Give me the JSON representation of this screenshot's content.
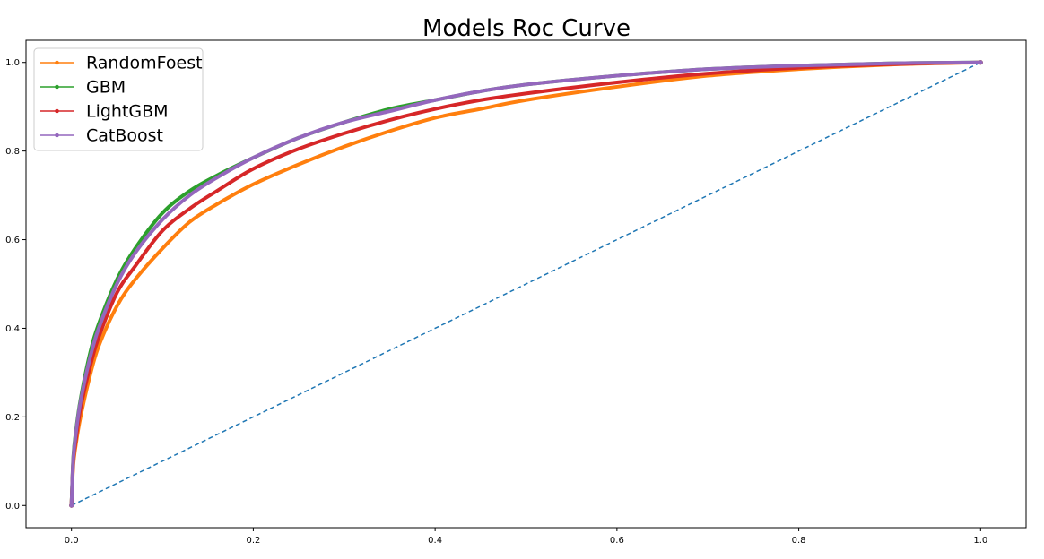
{
  "chart_data": {
    "type": "line",
    "title": "Models Roc Curve",
    "xlabel": "",
    "ylabel": "",
    "xlim": [
      -0.05,
      1.05
    ],
    "ylim": [
      -0.05,
      1.05
    ],
    "xticks": [
      0.0,
      0.2,
      0.4,
      0.6,
      0.8,
      1.0
    ],
    "yticks": [
      0.0,
      0.2,
      0.4,
      0.6,
      0.8,
      1.0
    ],
    "xtick_labels": [
      "0.0",
      "0.2",
      "0.4",
      "0.6",
      "0.8",
      "1.0"
    ],
    "ytick_labels": [
      "0.0",
      "0.2",
      "0.4",
      "0.6",
      "0.8",
      "1.0"
    ],
    "grid": false,
    "legend_position": "top-left",
    "baseline": {
      "name": "baseline",
      "color": "#1f77b4",
      "style": "dashed",
      "x": [
        0,
        1
      ],
      "y": [
        0,
        1
      ]
    },
    "series": [
      {
        "name": "RandomFoest",
        "color": "#ff7f0e",
        "x": [
          0,
          0.002,
          0.005,
          0.01,
          0.02,
          0.03,
          0.05,
          0.07,
          0.1,
          0.13,
          0.16,
          0.2,
          0.25,
          0.3,
          0.35,
          0.4,
          0.45,
          0.5,
          0.6,
          0.7,
          0.8,
          0.9,
          1.0
        ],
        "y": [
          0,
          0.09,
          0.14,
          0.2,
          0.29,
          0.36,
          0.45,
          0.51,
          0.58,
          0.64,
          0.68,
          0.725,
          0.77,
          0.81,
          0.845,
          0.875,
          0.895,
          0.915,
          0.945,
          0.97,
          0.985,
          0.995,
          1.0
        ]
      },
      {
        "name": "GBM",
        "color": "#2ca02c",
        "x": [
          0,
          0.002,
          0.005,
          0.01,
          0.02,
          0.03,
          0.05,
          0.07,
          0.1,
          0.13,
          0.16,
          0.2,
          0.25,
          0.3,
          0.35,
          0.4,
          0.45,
          0.5,
          0.6,
          0.7,
          0.8,
          0.9,
          1.0
        ],
        "y": [
          0,
          0.11,
          0.17,
          0.24,
          0.34,
          0.41,
          0.51,
          0.58,
          0.66,
          0.71,
          0.745,
          0.785,
          0.83,
          0.865,
          0.895,
          0.915,
          0.935,
          0.95,
          0.97,
          0.985,
          0.993,
          0.998,
          1.0
        ]
      },
      {
        "name": "LightGBM",
        "color": "#d62728",
        "x": [
          0,
          0.002,
          0.005,
          0.01,
          0.02,
          0.03,
          0.05,
          0.07,
          0.1,
          0.13,
          0.16,
          0.2,
          0.25,
          0.3,
          0.35,
          0.4,
          0.45,
          0.5,
          0.6,
          0.7,
          0.8,
          0.9,
          1.0
        ],
        "y": [
          0,
          0.1,
          0.15,
          0.22,
          0.31,
          0.38,
          0.48,
          0.54,
          0.62,
          0.67,
          0.71,
          0.76,
          0.805,
          0.84,
          0.87,
          0.895,
          0.915,
          0.93,
          0.955,
          0.975,
          0.988,
          0.996,
          1.0
        ]
      },
      {
        "name": "CatBoost",
        "color": "#9467bd",
        "x": [
          0,
          0.002,
          0.005,
          0.01,
          0.02,
          0.03,
          0.05,
          0.07,
          0.1,
          0.13,
          0.16,
          0.2,
          0.25,
          0.3,
          0.35,
          0.4,
          0.45,
          0.5,
          0.6,
          0.7,
          0.8,
          0.9,
          1.0
        ],
        "y": [
          0,
          0.105,
          0.165,
          0.235,
          0.33,
          0.4,
          0.5,
          0.57,
          0.645,
          0.7,
          0.74,
          0.785,
          0.83,
          0.865,
          0.89,
          0.915,
          0.935,
          0.95,
          0.97,
          0.985,
          0.993,
          0.998,
          1.0
        ]
      }
    ]
  }
}
